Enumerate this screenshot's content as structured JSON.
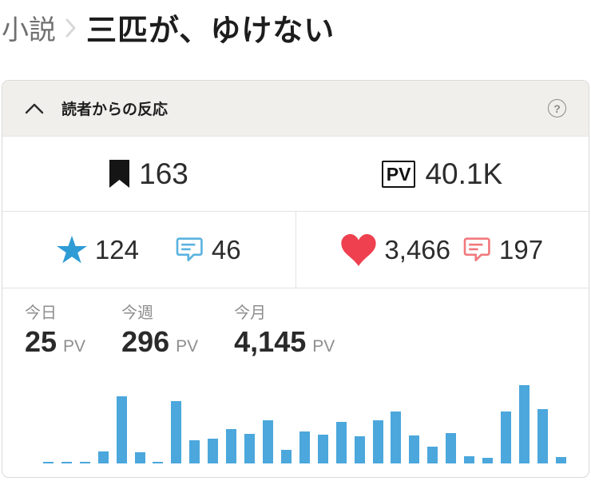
{
  "breadcrumb": {
    "section_label": "小説",
    "title": "三匹が、ゆけない"
  },
  "reactions_panel": {
    "title": "読者からの反応",
    "help_glyph": "?",
    "totals_row": {
      "bookmark_count": "163",
      "pv_badge": "PV",
      "pv_count": "40.1K"
    },
    "reviews_row": {
      "star_count": "124",
      "star_comment_count": "46",
      "heart_count": "3,466",
      "heart_comment_count": "197"
    },
    "pv_summary": [
      {
        "label": "今日",
        "value": "25",
        "unit": "PV"
      },
      {
        "label": "今週",
        "value": "296",
        "unit": "PV"
      },
      {
        "label": "今月",
        "value": "4,145",
        "unit": "PV"
      }
    ]
  },
  "chart_data": {
    "type": "bar",
    "title": "",
    "xlabel": "",
    "ylabel": "",
    "note": "daily pageview bars, no axis ticks or labels visible; values are relative bar heights in px",
    "values": [
      0,
      2,
      2,
      2,
      15,
      84,
      14,
      2,
      78,
      29,
      31,
      43,
      37,
      54,
      17,
      40,
      36,
      52,
      34,
      54,
      65,
      35,
      21,
      38,
      9,
      7,
      65,
      98,
      68,
      8
    ],
    "ylim": [
      0,
      119
    ],
    "grid": false,
    "legend": false,
    "bar_color": "#4ba7dc"
  },
  "colors": {
    "bar-blue": "#4ba7dc",
    "star-blue": "#2f9cd6",
    "comment-blue": "#5ab2e0",
    "heart-red": "#ee404f",
    "comment-pink": "#f1797d",
    "header-bg": "#f0efec",
    "panel-border": "#dadad8",
    "divider": "#e3e3e1"
  }
}
